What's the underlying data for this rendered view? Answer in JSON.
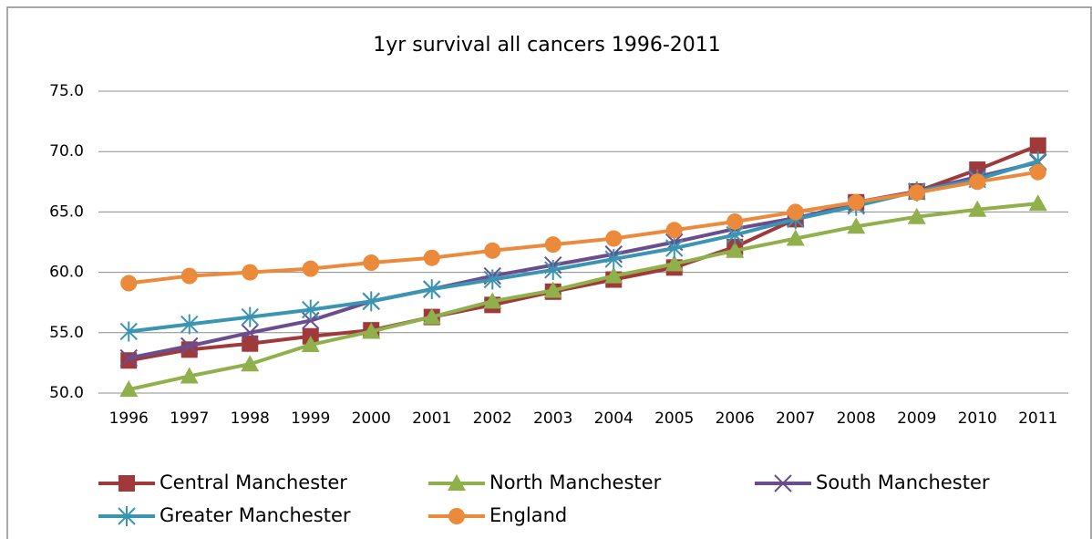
{
  "chart_data": {
    "type": "line",
    "title": "1yr survival all cancers 1996-2011",
    "categories": [
      "1996",
      "1997",
      "1998",
      "1999",
      "2000",
      "2001",
      "2002",
      "2003",
      "2004",
      "2005",
      "2006",
      "2007",
      "2008",
      "2009",
      "2010",
      "2011"
    ],
    "series": [
      {
        "name": "Central Manchester",
        "color": "#a0393a",
        "marker": "square",
        "values": [
          52.7,
          53.6,
          54.1,
          54.7,
          55.2,
          56.3,
          57.3,
          58.4,
          59.4,
          60.4,
          62.1,
          64.4,
          65.8,
          66.7,
          68.5,
          70.5
        ]
      },
      {
        "name": "North Manchester",
        "color": "#8fb04a",
        "marker": "triangle",
        "values": [
          50.3,
          51.4,
          52.4,
          54.0,
          55.1,
          56.3,
          57.6,
          58.5,
          59.7,
          60.7,
          61.8,
          62.8,
          63.8,
          64.6,
          65.2,
          65.7
        ]
      },
      {
        "name": "South Manchester",
        "color": "#6a4d8f",
        "marker": "x",
        "values": [
          52.9,
          53.9,
          55.0,
          56.0,
          57.6,
          58.6,
          59.7,
          60.6,
          61.5,
          62.5,
          63.6,
          64.5,
          65.6,
          66.7,
          67.9,
          69.1
        ]
      },
      {
        "name": "Greater Manchester",
        "color": "#3a95b3",
        "marker": "star",
        "values": [
          55.1,
          55.7,
          56.3,
          56.9,
          57.6,
          58.6,
          59.4,
          60.2,
          61.1,
          62.0,
          63.1,
          64.4,
          65.5,
          66.7,
          67.7,
          69.2
        ]
      },
      {
        "name": "England",
        "color": "#ec8a3c",
        "marker": "circle",
        "values": [
          59.1,
          59.7,
          60.0,
          60.3,
          60.8,
          61.2,
          61.8,
          62.3,
          62.8,
          63.5,
          64.2,
          65.0,
          65.8,
          66.6,
          67.5,
          68.3
        ]
      }
    ],
    "ylim": [
      50,
      75
    ],
    "yticks": [
      {
        "value": 50,
        "label": "50.0"
      },
      {
        "value": 55,
        "label": "55.0"
      },
      {
        "value": 60,
        "label": "60.0"
      },
      {
        "value": 65,
        "label": "65.0"
      },
      {
        "value": 70,
        "label": "70.0"
      },
      {
        "value": 75,
        "label": "75.0"
      }
    ],
    "grid": true,
    "legend": "bottom"
  }
}
